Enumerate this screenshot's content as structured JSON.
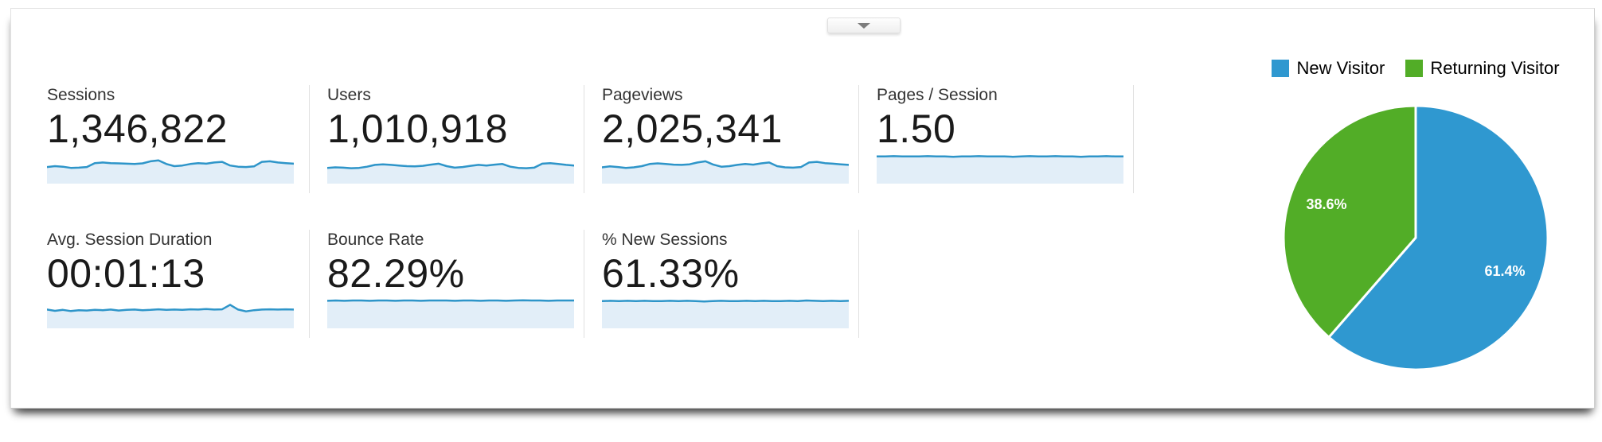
{
  "panel": {
    "collapse_button_icon": "chevron-down"
  },
  "metrics": {
    "row1": [
      {
        "id": "sessions",
        "label": "Sessions",
        "value": "1,346,822"
      },
      {
        "id": "users",
        "label": "Users",
        "value": "1,010,918"
      },
      {
        "id": "pageviews",
        "label": "Pageviews",
        "value": "2,025,341"
      },
      {
        "id": "pages-per-session",
        "label": "Pages / Session",
        "value": "1.50"
      }
    ],
    "row2": [
      {
        "id": "avg-session-duration",
        "label": "Avg. Session Duration",
        "value": "00:01:13"
      },
      {
        "id": "bounce-rate",
        "label": "Bounce Rate",
        "value": "82.29%"
      },
      {
        "id": "percent-new-sessions",
        "label": "% New Sessions",
        "value": "61.33%"
      }
    ]
  },
  "colors": {
    "sparkline_stroke": "#2e95c9",
    "sparkline_fill": "#e2eef8",
    "pie_blue": "#2f98d0",
    "pie_green": "#52ad27",
    "divider": "#e0e0e0",
    "label_text": "#333333",
    "value_text": "#1a1a1a"
  },
  "chart_data": [
    {
      "type": "pie",
      "title": "",
      "legend_position": "top",
      "start_angle_deg": 0,
      "direction": "clockwise",
      "radius_px": 167,
      "slices": [
        {
          "label": "New Visitor",
          "value": 61.4,
          "data_label": "61.4%",
          "color": "#2f98d0"
        },
        {
          "label": "Returning Visitor",
          "value": 38.6,
          "data_label": "38.6%",
          "color": "#52ad27"
        }
      ]
    },
    {
      "type": "line",
      "subtype": "sparklines",
      "note": "Unlabeled trend sparklines under each summary metric; values are normalized 0-1 heights estimated from pixels.",
      "series": [
        {
          "name": "Sessions",
          "values": [
            0.55,
            0.58,
            0.56,
            0.52,
            0.53,
            0.55,
            0.68,
            0.7,
            0.68,
            0.67,
            0.66,
            0.65,
            0.67,
            0.74,
            0.77,
            0.65,
            0.58,
            0.6,
            0.65,
            0.68,
            0.66,
            0.7,
            0.72,
            0.6,
            0.56,
            0.55,
            0.57,
            0.72,
            0.74,
            0.7,
            0.68,
            0.66
          ]
        },
        {
          "name": "Users",
          "values": [
            0.52,
            0.54,
            0.53,
            0.51,
            0.52,
            0.56,
            0.62,
            0.64,
            0.62,
            0.6,
            0.58,
            0.57,
            0.59,
            0.63,
            0.66,
            0.58,
            0.53,
            0.55,
            0.59,
            0.62,
            0.6,
            0.63,
            0.65,
            0.56,
            0.52,
            0.51,
            0.53,
            0.66,
            0.68,
            0.65,
            0.62,
            0.6
          ]
        },
        {
          "name": "Pageviews",
          "values": [
            0.54,
            0.57,
            0.55,
            0.52,
            0.54,
            0.58,
            0.65,
            0.67,
            0.65,
            0.63,
            0.62,
            0.64,
            0.7,
            0.74,
            0.63,
            0.56,
            0.58,
            0.62,
            0.65,
            0.63,
            0.67,
            0.7,
            0.58,
            0.54,
            0.53,
            0.55,
            0.7,
            0.72,
            0.68,
            0.66,
            0.64,
            0.62
          ]
        },
        {
          "name": "Pages / Session",
          "values": [
            0.9,
            0.9,
            0.91,
            0.9,
            0.9,
            0.9,
            0.91,
            0.9,
            0.9,
            0.89,
            0.9,
            0.9,
            0.91,
            0.9,
            0.9,
            0.9,
            0.89,
            0.9,
            0.91,
            0.9,
            0.9,
            0.91,
            0.9,
            0.9,
            0.89,
            0.9,
            0.9,
            0.91,
            0.9,
            0.9
          ]
        },
        {
          "name": "Avg. Session Duration",
          "values": [
            0.62,
            0.58,
            0.61,
            0.57,
            0.6,
            0.59,
            0.61,
            0.6,
            0.62,
            0.59,
            0.61,
            0.62,
            0.6,
            0.61,
            0.63,
            0.61,
            0.62,
            0.61,
            0.63,
            0.62,
            0.64,
            0.62,
            0.63,
            0.78,
            0.62,
            0.56,
            0.6,
            0.62,
            0.63,
            0.62,
            0.63,
            0.62
          ]
        },
        {
          "name": "Bounce Rate",
          "values": [
            0.91,
            0.92,
            0.91,
            0.92,
            0.92,
            0.91,
            0.92,
            0.92,
            0.91,
            0.92,
            0.92,
            0.91,
            0.92,
            0.92,
            0.92,
            0.91,
            0.92,
            0.92,
            0.91,
            0.92,
            0.92,
            0.91,
            0.92,
            0.93,
            0.92,
            0.92,
            0.91,
            0.92,
            0.92,
            0.92
          ]
        },
        {
          "name": "% New Sessions",
          "values": [
            0.9,
            0.91,
            0.9,
            0.91,
            0.9,
            0.91,
            0.9,
            0.9,
            0.91,
            0.9,
            0.91,
            0.9,
            0.89,
            0.9,
            0.91,
            0.9,
            0.9,
            0.91,
            0.9,
            0.91,
            0.9,
            0.9,
            0.91,
            0.9,
            0.92,
            0.91,
            0.9,
            0.91,
            0.9,
            0.91
          ]
        }
      ]
    }
  ]
}
